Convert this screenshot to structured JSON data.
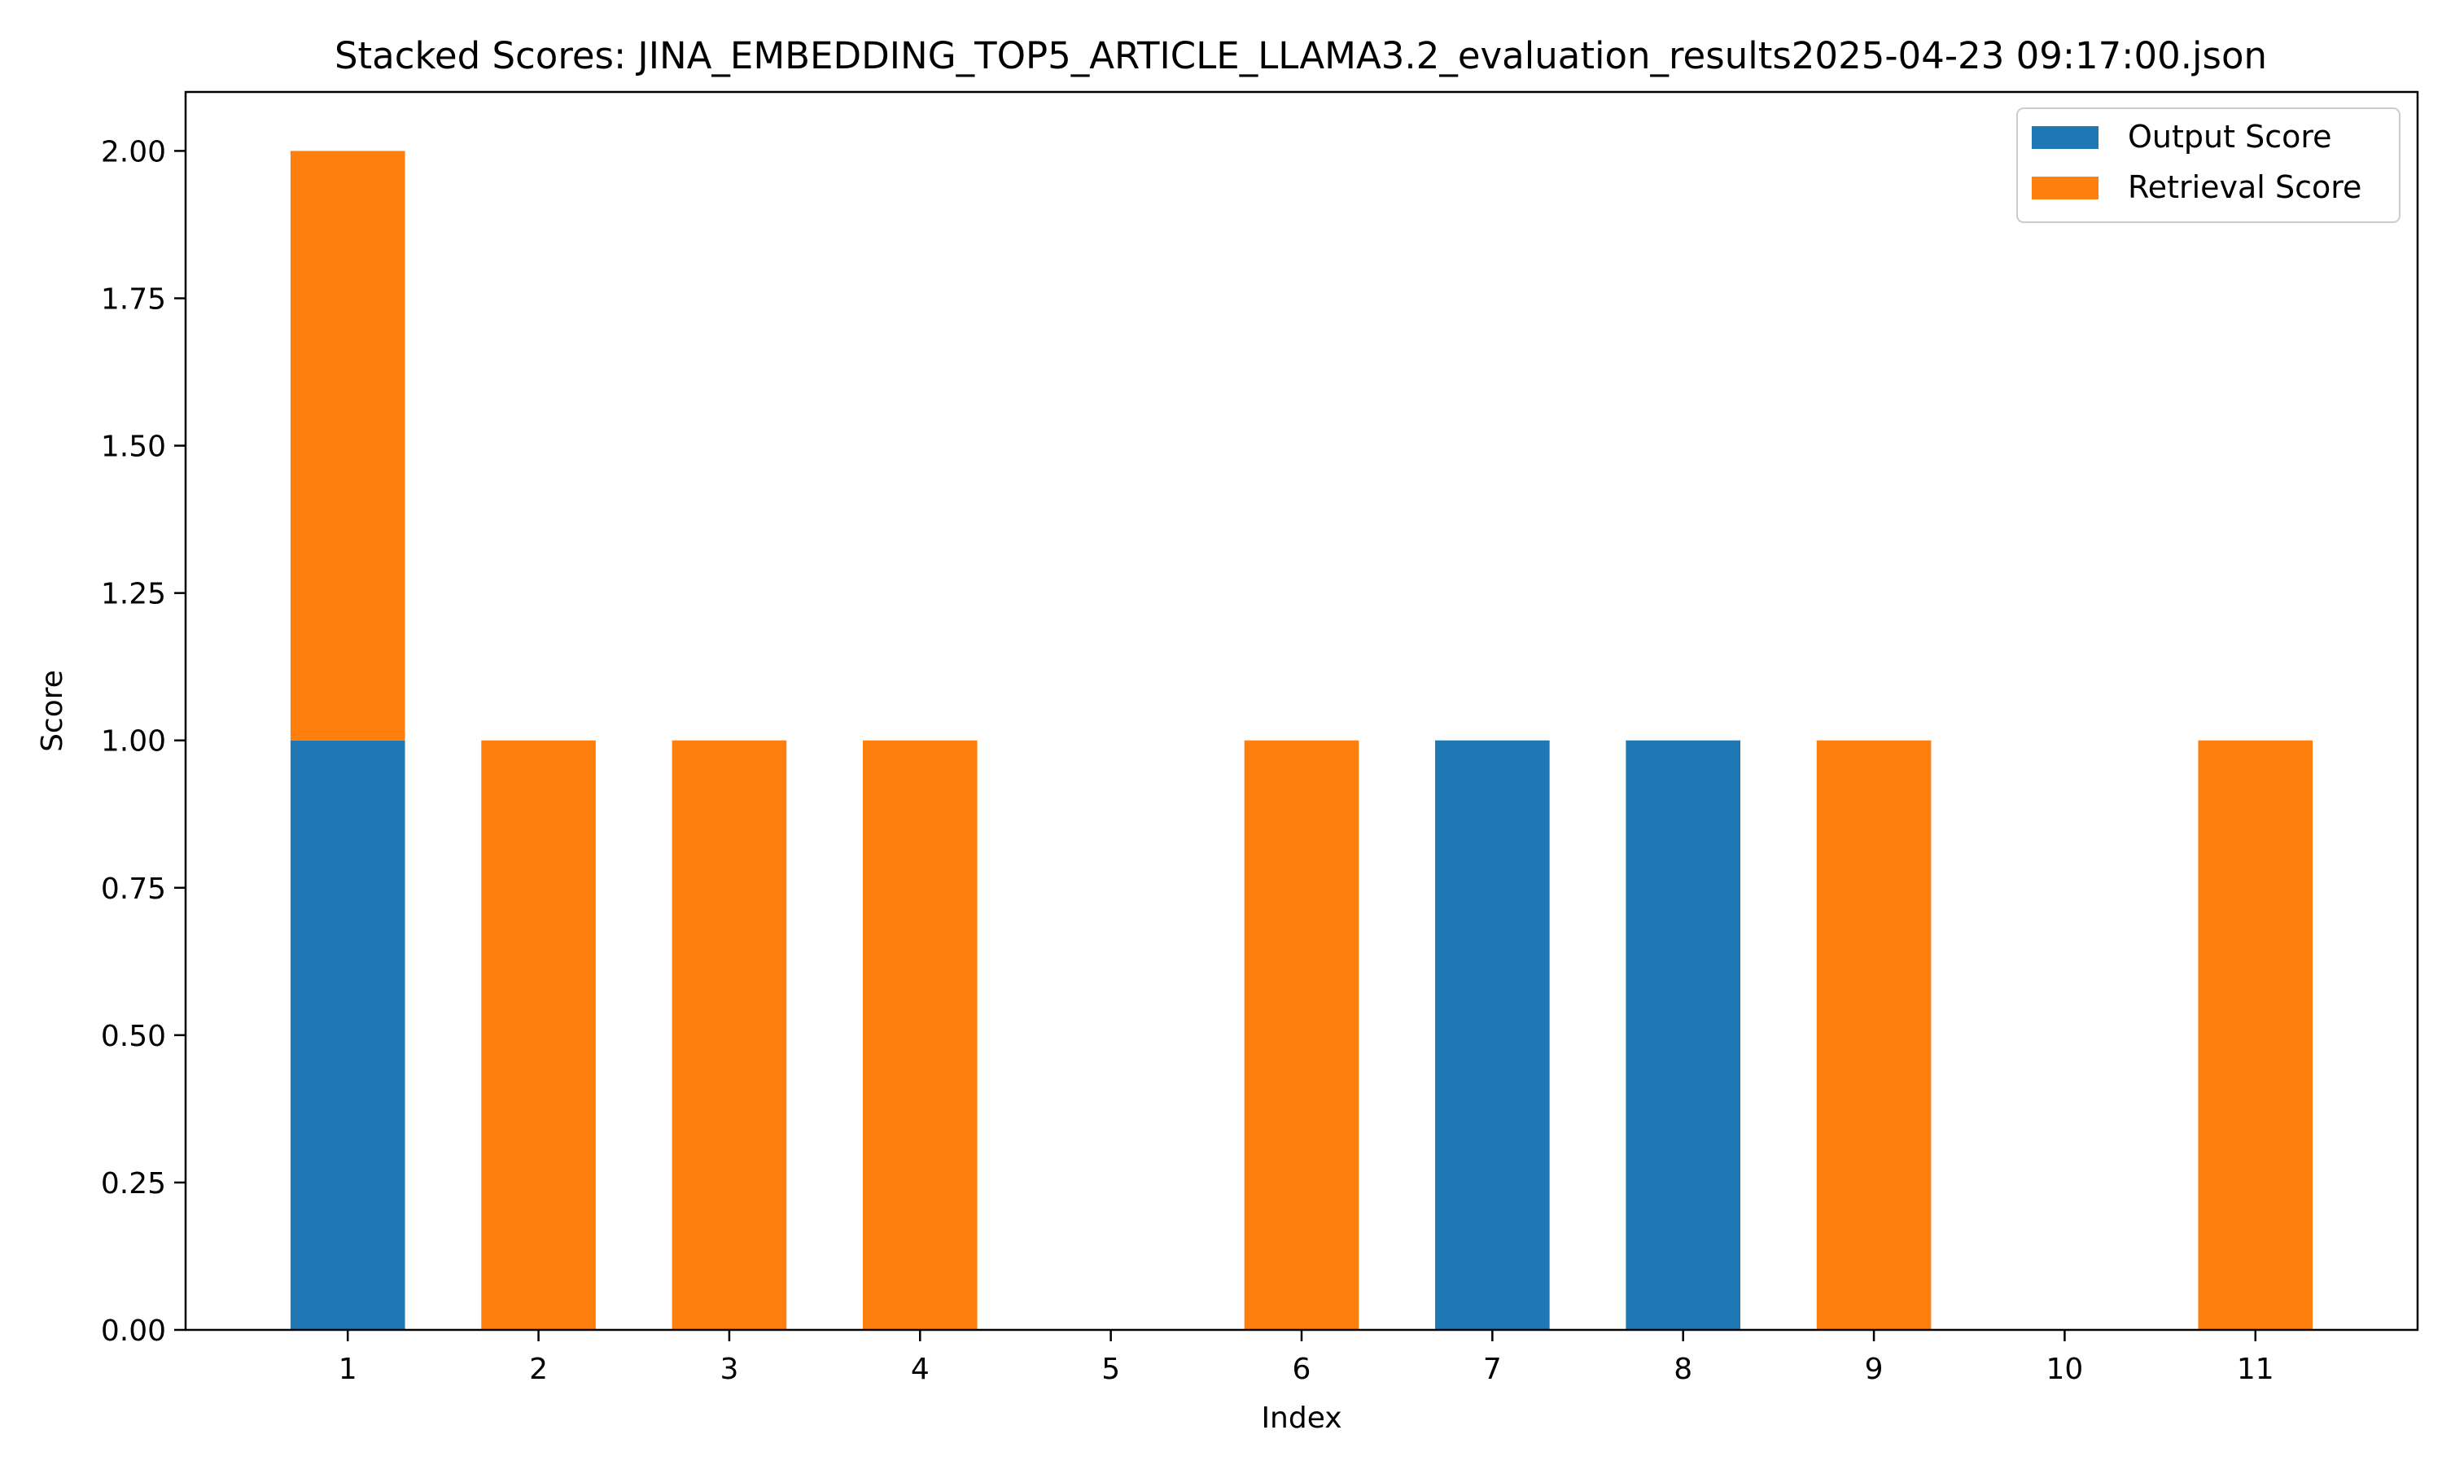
{
  "chart_data": {
    "type": "bar",
    "stacked": true,
    "title": "Stacked Scores: JINA_EMBEDDING_TOP5_ARTICLE_LLAMA3.2_evaluation_results2025-04-23 09:17:00.json",
    "xlabel": "Index",
    "ylabel": "Score",
    "categories": [
      "1",
      "2",
      "3",
      "4",
      "5",
      "6",
      "7",
      "8",
      "9",
      "10",
      "11"
    ],
    "series": [
      {
        "name": "Output Score",
        "color": "#1f77b4",
        "values": [
          1,
          0,
          0,
          0,
          0,
          0,
          1,
          1,
          0,
          0,
          0
        ]
      },
      {
        "name": "Retrieval Score",
        "color": "#ff7f0e",
        "values": [
          1,
          1,
          1,
          1,
          0,
          1,
          0,
          0,
          1,
          0,
          1
        ]
      }
    ],
    "ylim": [
      0,
      2.1
    ],
    "yticks": [
      0.0,
      0.25,
      0.5,
      0.75,
      1.0,
      1.25,
      1.5,
      1.75,
      2.0
    ],
    "ytick_labels": [
      "0.00",
      "0.25",
      "0.50",
      "0.75",
      "1.00",
      "1.25",
      "1.50",
      "1.75",
      "2.00"
    ],
    "grid": false,
    "legend_position": "top-right"
  }
}
